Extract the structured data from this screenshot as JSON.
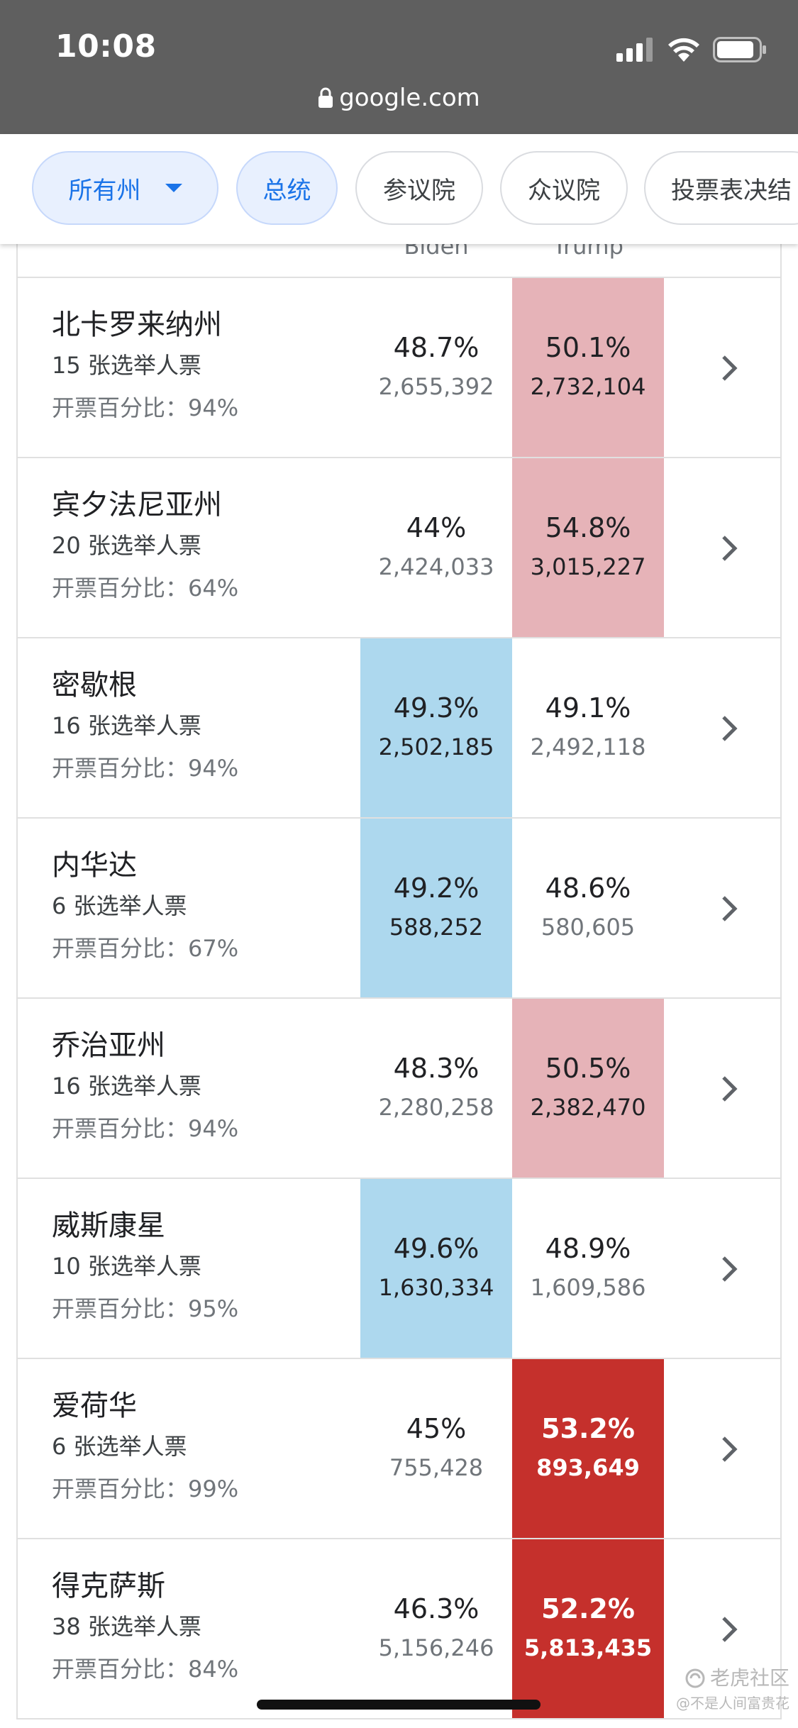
{
  "status_bar": {
    "time": "10:08"
  },
  "browser": {
    "url": "google.com"
  },
  "filters": {
    "chips": [
      {
        "label": "所有州",
        "active": true
      },
      {
        "label": "总统",
        "active": true
      },
      {
        "label": "参议院",
        "active": false
      },
      {
        "label": "众议院",
        "active": false
      },
      {
        "label": "投票表决结",
        "active": false
      }
    ]
  },
  "table": {
    "headers": {
      "biden": "Biden",
      "trump": "Trump"
    },
    "rows": [
      {
        "state": "北卡罗来纳州",
        "ev": "15 张选举人票",
        "reported": "开票百分比：94%",
        "biden_pct": "48.7%",
        "biden_votes": "2,655,392",
        "trump_pct": "50.1%",
        "trump_votes": "2,732,104",
        "leader": "trump",
        "status": "leading"
      },
      {
        "state": "宾夕法尼亚州",
        "ev": "20 张选举人票",
        "reported": "开票百分比：64%",
        "biden_pct": "44%",
        "biden_votes": "2,424,033",
        "trump_pct": "54.8%",
        "trump_votes": "3,015,227",
        "leader": "trump",
        "status": "leading"
      },
      {
        "state": "密歇根",
        "ev": "16 张选举人票",
        "reported": "开票百分比：94%",
        "biden_pct": "49.3%",
        "biden_votes": "2,502,185",
        "trump_pct": "49.1%",
        "trump_votes": "2,492,118",
        "leader": "biden",
        "status": "leading"
      },
      {
        "state": "内华达",
        "ev": "6 张选举人票",
        "reported": "开票百分比：67%",
        "biden_pct": "49.2%",
        "biden_votes": "588,252",
        "trump_pct": "48.6%",
        "trump_votes": "580,605",
        "leader": "biden",
        "status": "leading"
      },
      {
        "state": "乔治亚州",
        "ev": "16 张选举人票",
        "reported": "开票百分比：94%",
        "biden_pct": "48.3%",
        "biden_votes": "2,280,258",
        "trump_pct": "50.5%",
        "trump_votes": "2,382,470",
        "leader": "trump",
        "status": "leading"
      },
      {
        "state": "威斯康星",
        "ev": "10 张选举人票",
        "reported": "开票百分比：95%",
        "biden_pct": "49.6%",
        "biden_votes": "1,630,334",
        "trump_pct": "48.9%",
        "trump_votes": "1,609,586",
        "leader": "biden",
        "status": "leading"
      },
      {
        "state": "爱荷华",
        "ev": "6 张选举人票",
        "reported": "开票百分比：99%",
        "biden_pct": "45%",
        "biden_votes": "755,428",
        "trump_pct": "53.2%",
        "trump_votes": "893,649",
        "leader": "trump",
        "status": "winner"
      },
      {
        "state": "得克萨斯",
        "ev": "38 张选举人票",
        "reported": "开票百分比：84%",
        "biden_pct": "46.3%",
        "biden_votes": "5,156,246",
        "trump_pct": "52.2%",
        "trump_votes": "5,813,435",
        "leader": "trump",
        "status": "winner"
      }
    ]
  },
  "watermark": {
    "main": "老虎社区",
    "sub": "@不是人间富贵花"
  },
  "colors": {
    "top_bar": "#5f5f5f",
    "chip_active_bg": "#e8f0fe",
    "chip_active_text": "#1a73e8",
    "biden_leading": "#add8ee",
    "trump_leading": "#e6b3b8",
    "trump_winner": "#c5302c"
  }
}
